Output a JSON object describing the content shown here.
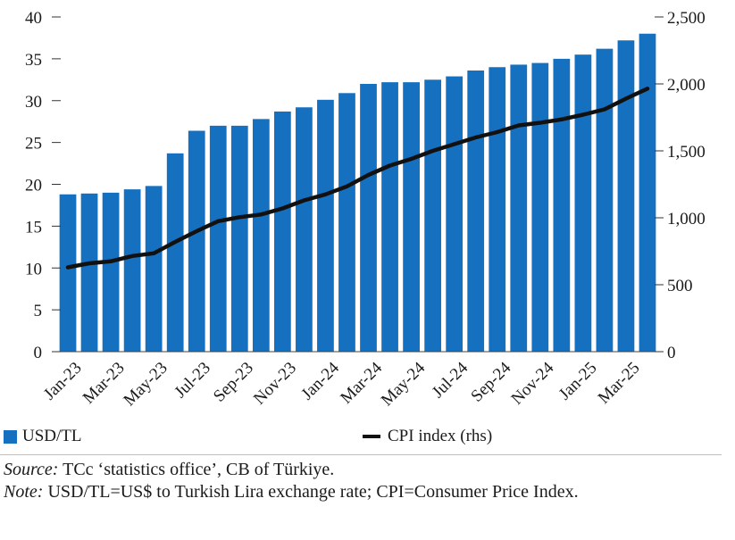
{
  "chart_data": {
    "type": "bar+line",
    "categories": [
      "Jan-23",
      "Feb-23",
      "Mar-23",
      "Apr-23",
      "May-23",
      "Jun-23",
      "Jul-23",
      "Aug-23",
      "Sep-23",
      "Oct-23",
      "Nov-23",
      "Dec-23",
      "Jan-24",
      "Feb-24",
      "Mar-24",
      "Apr-24",
      "May-24",
      "Jun-24",
      "Jul-24",
      "Aug-24",
      "Sep-24",
      "Oct-24",
      "Nov-24",
      "Dec-24",
      "Jan-25",
      "Feb-25",
      "Mar-25",
      "Apr-25"
    ],
    "x_tick_labels": [
      "Jan-23",
      "Mar-23",
      "May-23",
      "Jul-23",
      "Sep-23",
      "Nov-23",
      "Jan-24",
      "Mar-24",
      "May-24",
      "Jul-24",
      "Sep-24",
      "Nov-24",
      "Jan-25",
      "Mar-25"
    ],
    "series": [
      {
        "name": "USD/TL",
        "type": "bar",
        "axis": "left",
        "color": "#1570c0",
        "values": [
          18.8,
          18.9,
          19.0,
          19.4,
          19.8,
          23.7,
          26.4,
          27.0,
          27.0,
          27.8,
          28.7,
          29.2,
          30.1,
          30.9,
          32.0,
          32.2,
          32.2,
          32.5,
          32.9,
          33.6,
          34.0,
          34.3,
          34.5,
          35.0,
          35.5,
          36.2,
          37.2,
          38.0
        ]
      },
      {
        "name": "CPI index (rhs)",
        "type": "line",
        "axis": "right",
        "color": "#111111",
        "values": [
          630,
          660,
          675,
          715,
          735,
          820,
          900,
          975,
          1005,
          1025,
          1070,
          1130,
          1175,
          1235,
          1320,
          1390,
          1440,
          1500,
          1550,
          1600,
          1640,
          1690,
          1710,
          1735,
          1770,
          1810,
          1890,
          1965
        ]
      }
    ],
    "y_left": {
      "min": 0,
      "max": 40,
      "ticks": [
        0,
        5,
        10,
        15,
        20,
        25,
        30,
        35,
        40
      ]
    },
    "y_right": {
      "min": 0,
      "max": 2500,
      "ticks": [
        "0",
        "500",
        "1,000",
        "1,500",
        "2,000",
        "2,500"
      ],
      "tick_values": [
        0,
        500,
        1000,
        1500,
        2000,
        2500
      ]
    },
    "legend": {
      "bar_label": "USD/TL",
      "line_label": "CPI index (rhs)",
      "placement": "bottom"
    }
  },
  "notes": {
    "source_label": "Source:",
    "source_text": " TCc ‘statistics office’, CB of Türkiye.",
    "note_label": "Note:",
    "note_text": " USD/TL=US$ to Turkish Lira exchange rate; CPI=Consumer Price Index."
  }
}
